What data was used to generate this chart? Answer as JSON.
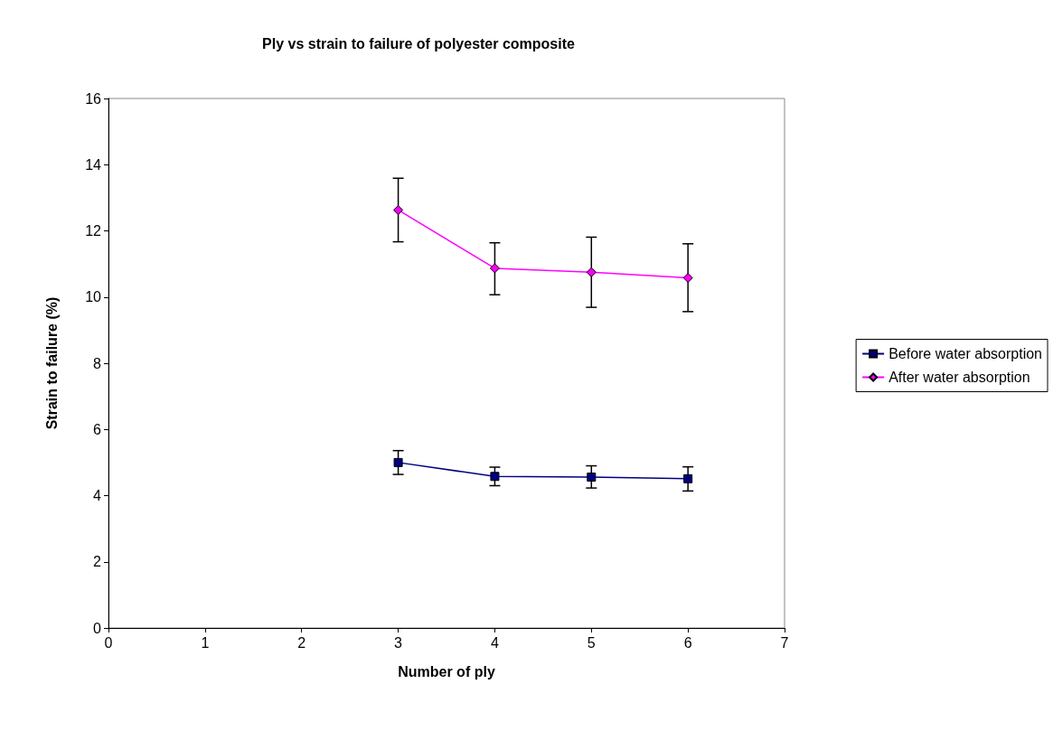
{
  "chart_data": {
    "type": "line",
    "title": "Ply vs strain to failure of polyester composite",
    "xlabel": "Number of ply",
    "ylabel": "Strain to failure (%)",
    "x": [
      3,
      4,
      5,
      6
    ],
    "series": [
      {
        "name": "Before water absorption",
        "color": "#000080",
        "marker": "square",
        "values": [
          5.0,
          4.58,
          4.56,
          4.51
        ],
        "errors": [
          [
            4.64,
            5.36
          ],
          [
            4.3,
            4.86
          ],
          [
            4.23,
            4.9
          ],
          [
            4.14,
            4.87
          ]
        ]
      },
      {
        "name": "After water absorption",
        "color": "#ff00ff",
        "marker": "diamond",
        "values": [
          12.63,
          10.87,
          10.75,
          10.58
        ],
        "errors": [
          [
            11.67,
            13.59
          ],
          [
            10.07,
            11.64
          ],
          [
            9.69,
            11.81
          ],
          [
            9.56,
            11.61
          ]
        ]
      }
    ],
    "xlim": [
      0,
      7
    ],
    "xticks": [
      0,
      1,
      2,
      3,
      4,
      5,
      6,
      7
    ],
    "ylim": [
      0,
      16
    ],
    "yticks": [
      0,
      2,
      4,
      6,
      8,
      10,
      12,
      14,
      16
    ],
    "grid": false,
    "legend": "right",
    "line_style": "solid"
  }
}
